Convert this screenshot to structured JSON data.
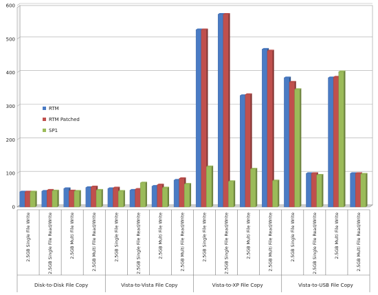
{
  "chart_data": {
    "type": "bar",
    "title": "",
    "xlabel": "",
    "ylabel": "",
    "ylim": [
      0,
      600
    ],
    "yticks": [
      0,
      100,
      200,
      300,
      400,
      500,
      600
    ],
    "grid": true,
    "legend_position": "left",
    "categories": [
      "2.5GB Single File Write",
      "2.5GB Single File Read/Write",
      "2.5GB Multi File Write",
      "2.5GB Multi File Read/Write",
      "2.5GB Single File Write",
      "2.5GB Single File Read/Write",
      "2.5GB Multi File Write",
      "2.5GB Multi File Read/Write",
      "2.5GB Single File Write",
      "2.5GB Single File Read/Write",
      "2.5GB Multi File Write",
      "2.5GB Multi File Read/Write",
      "2.5GB Single File Write",
      "2.5GB Single File Read/Write",
      "2.5GB Multi File Write",
      "2.5GB Multi File Read/Write"
    ],
    "groups": [
      {
        "label": "Disk-to-Disk File Copy",
        "count": 4
      },
      {
        "label": "Vista-to-Vista  File Copy",
        "count": 4
      },
      {
        "label": "Vista-to-XP File Copy",
        "count": 4
      },
      {
        "label": "Vista-to-USB File Copy",
        "count": 4
      }
    ],
    "series": [
      {
        "name": "RTM",
        "color": "#4a7bc4",
        "values": [
          45,
          47,
          55,
          58,
          55,
          50,
          62,
          80,
          528,
          574,
          332,
          470,
          385,
          100,
          385,
          100
        ]
      },
      {
        "name": "RTM Patched",
        "color": "#c0504d",
        "values": [
          45,
          50,
          48,
          60,
          57,
          53,
          66,
          85,
          528,
          574,
          335,
          465,
          372,
          100,
          387,
          100
        ]
      },
      {
        "name": "SP1",
        "color": "#9bbb59",
        "values": [
          45,
          48,
          47,
          50,
          47,
          72,
          57,
          68,
          120,
          76,
          113,
          78,
          350,
          95,
          403,
          98
        ]
      }
    ]
  }
}
